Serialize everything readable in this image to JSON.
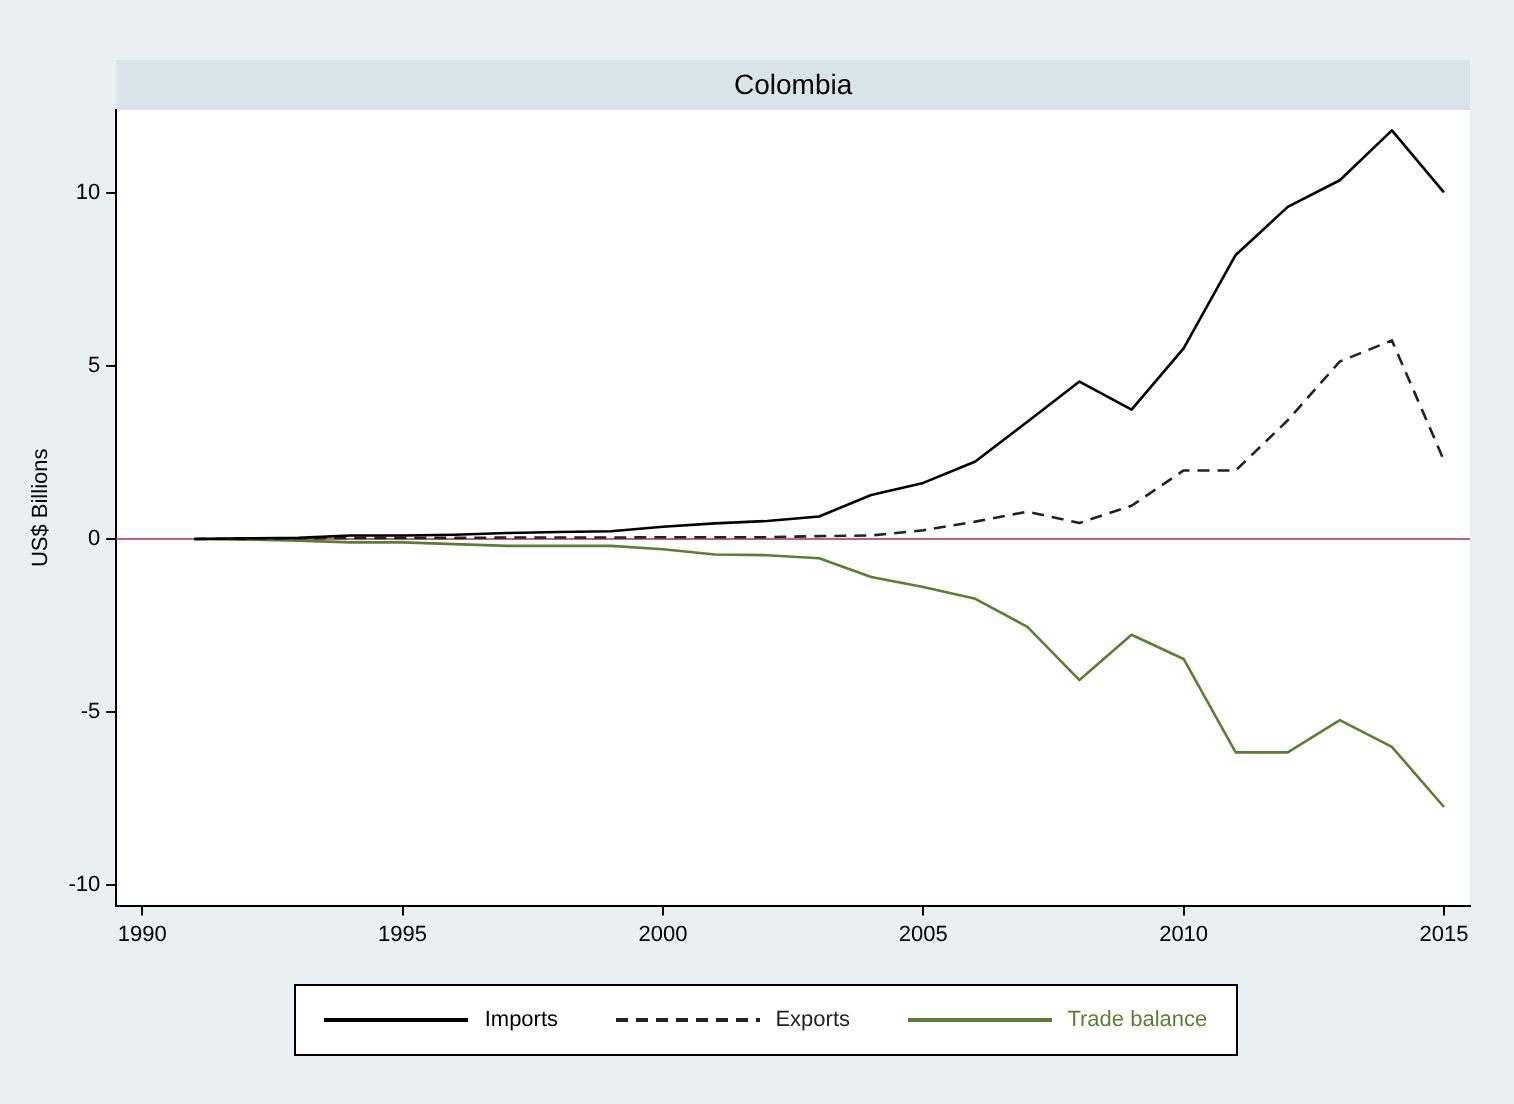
{
  "chart_data": {
    "type": "line",
    "title": "Colombia",
    "ylabel": "US$ Billions",
    "x": [
      1991,
      1992,
      1993,
      1994,
      1995,
      1996,
      1997,
      1998,
      1999,
      2000,
      2001,
      2002,
      2003,
      2004,
      2005,
      2006,
      2007,
      2008,
      2009,
      2010,
      2011,
      2012,
      2013,
      2014,
      2015
    ],
    "series": [
      {
        "name": "Imports",
        "color": "#000000",
        "line_style": "solid",
        "values": [
          0,
          0.02,
          0.03,
          0.1,
          0.1,
          0.12,
          0.17,
          0.2,
          0.22,
          0.35,
          0.45,
          0.52,
          0.65,
          1.27,
          1.62,
          2.24,
          3.39,
          4.55,
          3.74,
          5.51,
          8.21,
          9.6,
          10.37,
          11.81,
          10.02
        ]
      },
      {
        "name": "Exports",
        "color": "#222222",
        "line_style": "dashed",
        "values": [
          0,
          0.01,
          0.02,
          0.03,
          0.03,
          0.03,
          0.04,
          0.04,
          0.04,
          0.05,
          0.05,
          0.05,
          0.08,
          0.1,
          0.25,
          0.5,
          0.79,
          0.46,
          0.96,
          1.98,
          1.98,
          3.43,
          5.13,
          5.74,
          2.27
        ]
      },
      {
        "name": "Trade balance",
        "color": "#5a7f32",
        "line_style": "solid",
        "values": [
          0,
          -0.02,
          -0.05,
          -0.1,
          -0.1,
          -0.15,
          -0.2,
          -0.2,
          -0.2,
          -0.3,
          -0.45,
          -0.47,
          -0.56,
          -1.1,
          -1.39,
          -1.73,
          -2.54,
          -4.08,
          -2.77,
          -3.47,
          -6.17,
          -6.17,
          -5.24,
          -6.01,
          -7.75
        ]
      }
    ],
    "xlim": [
      1989.5,
      2015.5
    ],
    "xticks": [
      1990,
      1995,
      2000,
      2005,
      2010,
      2015
    ],
    "ylim": [
      -10.6,
      12.4
    ],
    "yticks": [
      -10,
      -5,
      0,
      5,
      10
    ],
    "ref_lines": [
      {
        "axis": "y",
        "value": 0,
        "color": "#c0607a"
      }
    ],
    "grid": false,
    "legend": "bottom",
    "marker": "none"
  }
}
